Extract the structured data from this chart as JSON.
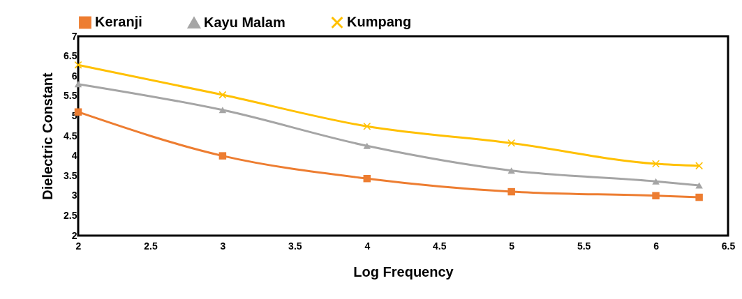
{
  "chart_data": {
    "type": "line",
    "xlabel": "Log Frequency",
    "ylabel": "Dielectric Constant",
    "x": [
      2,
      3,
      4,
      5,
      6,
      6.3
    ],
    "series": [
      {
        "name": "Keranji",
        "color": "#ed7d31",
        "marker": "square",
        "values": [
          5.1,
          4.0,
          3.43,
          3.1,
          3.0,
          2.96
        ]
      },
      {
        "name": "Kayu Malam",
        "color": "#a5a5a5",
        "marker": "triangle",
        "values": [
          5.8,
          5.15,
          4.25,
          3.63,
          3.36,
          3.26
        ]
      },
      {
        "name": "Kumpang",
        "color": "#ffc000",
        "marker": "cross",
        "values": [
          6.28,
          5.53,
          4.74,
          4.32,
          3.8,
          3.75
        ]
      }
    ],
    "xlim": [
      2,
      6.5
    ],
    "xticks": [
      2,
      2.5,
      3,
      3.5,
      4,
      4.5,
      5,
      5.5,
      6,
      6.5
    ],
    "ylim": [
      2,
      7
    ],
    "yticks": [
      2,
      2.5,
      3,
      3.5,
      4,
      4.5,
      5,
      5.5,
      6,
      6.5,
      7
    ],
    "grid": false,
    "legend": "top",
    "line_style": "solid"
  }
}
